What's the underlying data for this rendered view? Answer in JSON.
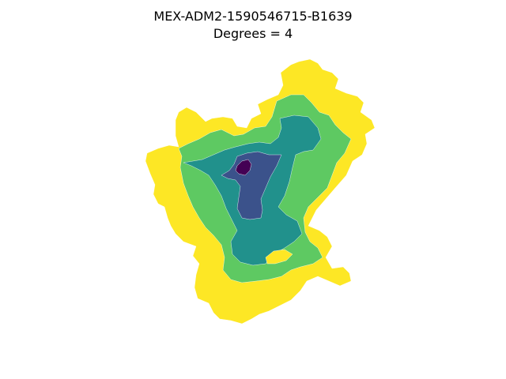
{
  "title": {
    "line1": "MEX-ADM2-1590546715-B1639",
    "line2": "Degrees = 4"
  },
  "map": {
    "colors": {
      "degree_0": "#440154",
      "degree_1": "#3b528b",
      "degree_2": "#21918c",
      "degree_3": "#5ec962",
      "degree_4": "#fde725",
      "border": "#ffffff"
    }
  }
}
